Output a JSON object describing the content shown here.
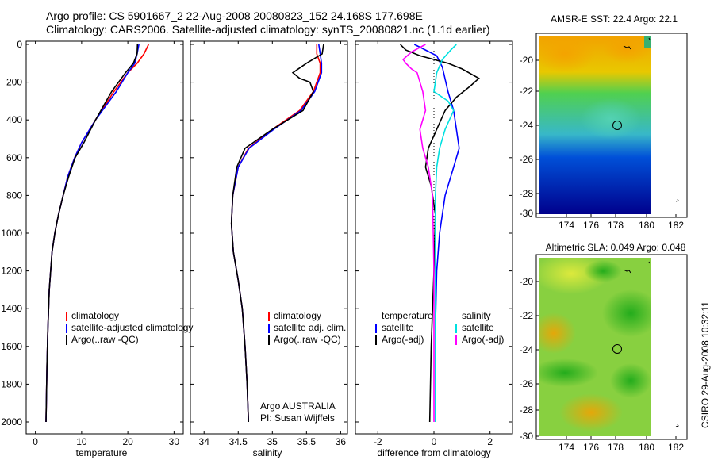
{
  "title_line1": "Argo profile: CS 5901667_2 22-Aug-2008 20080823_152 24.168S 177.698E",
  "title_line2": "Climatology: CARS2006. Satellite-adjusted climatology: synTS_20080821.nc (1.1d earlier)",
  "footer": "CSIRO 29-Aug-2008 10:32:11",
  "depth_ticks": [
    "0",
    "200",
    "400",
    "600",
    "800",
    "1000",
    "1200",
    "1400",
    "1600",
    "1800",
    "2000"
  ],
  "colors": {
    "red": "#ff0000",
    "blue": "#0000ff",
    "black": "#000000",
    "cyan": "#00e0e0",
    "magenta": "#ff00ff"
  },
  "panels": {
    "temperature": {
      "xlabel": "temperature",
      "xticks": [
        "0",
        "10",
        "20",
        "30"
      ],
      "legend": [
        "climatology",
        "satellite-adjusted climatology",
        "Argo(..raw -QC)"
      ]
    },
    "salinity": {
      "xlabel": "salinity",
      "xticks": [
        "34",
        "34.5",
        "35",
        "35.5",
        "36"
      ],
      "legend": [
        "climatology",
        "satellite adj. clim.",
        "Argo(..raw -QC)"
      ],
      "note1": "Argo AUSTRALIA",
      "note2": "PI: Susan Wijffels"
    },
    "difference": {
      "xlabel": "difference from climatology",
      "xticks": [
        "-2",
        "0",
        "2"
      ],
      "legend_temp_head": "temperature",
      "legend_temp": [
        "satellite",
        "Argo(-adj)"
      ],
      "legend_sal_head": "salinity",
      "legend_sal": [
        "satellite",
        "Argo(-adj)"
      ]
    }
  },
  "maps": {
    "sst_title": "AMSR-E SST: 22.4  Argo: 22.1",
    "sla_title": "Altimetric SLA: 0.049  Argo: 0.048",
    "lat_ticks": [
      "-20",
      "-22",
      "-24",
      "-26",
      "-28",
      "-30"
    ],
    "lon_ticks": [
      "174",
      "176",
      "178",
      "180",
      "182"
    ]
  },
  "chart_data": [
    {
      "type": "line",
      "title": "",
      "xlabel": "temperature",
      "ylabel": "",
      "xlim": [
        -2,
        32
      ],
      "ylim": [
        2050,
        0
      ],
      "series": [
        {
          "name": "climatology",
          "x": [
            24.5,
            23.5,
            22,
            20,
            17,
            13,
            10,
            8.5,
            7,
            6,
            5,
            4.2,
            3.6,
            3,
            2.7,
            2.5,
            2.3
          ],
          "y": [
            0,
            50,
            100,
            150,
            250,
            400,
            520,
            600,
            700,
            800,
            900,
            1000,
            1100,
            1300,
            1500,
            1700,
            2000
          ]
        },
        {
          "name": "satellite-adjusted climatology",
          "x": [
            22.4,
            22,
            21.5,
            20,
            17.5,
            13,
            10,
            8.5,
            7,
            6,
            5,
            4.2,
            3.6,
            3,
            2.7,
            2.5,
            2.3
          ],
          "y": [
            0,
            50,
            100,
            150,
            250,
            400,
            520,
            600,
            700,
            800,
            900,
            1000,
            1100,
            1300,
            1500,
            1700,
            2000
          ]
        },
        {
          "name": "Argo(..raw -QC)",
          "x": [
            22.1,
            22,
            21.2,
            19.5,
            16.5,
            13,
            10.5,
            8.6,
            7.2,
            6,
            5,
            4.2,
            3.6,
            3,
            2.7,
            2.5,
            2.3
          ],
          "y": [
            0,
            50,
            100,
            150,
            250,
            400,
            520,
            600,
            700,
            800,
            900,
            1000,
            1100,
            1300,
            1500,
            1700,
            2000
          ]
        }
      ]
    },
    {
      "type": "line",
      "title": "",
      "xlabel": "salinity",
      "ylabel": "",
      "xlim": [
        33.8,
        36.1
      ],
      "ylim": [
        2050,
        0
      ],
      "series": [
        {
          "name": "climatology",
          "x": [
            35.65,
            35.65,
            35.7,
            35.7,
            35.6,
            35.4,
            35.0,
            34.65,
            34.5,
            34.42,
            34.4,
            34.43,
            34.5,
            34.56,
            34.6,
            34.63,
            34.65
          ],
          "y": [
            0,
            50,
            100,
            150,
            250,
            350,
            450,
            550,
            650,
            800,
            950,
            1100,
            1250,
            1400,
            1600,
            1800,
            2000
          ]
        },
        {
          "name": "satellite adj. clim.",
          "x": [
            35.68,
            35.7,
            35.72,
            35.72,
            35.62,
            35.42,
            35.02,
            34.66,
            34.5,
            34.42,
            34.4,
            34.43,
            34.5,
            34.56,
            34.6,
            34.63,
            34.65
          ],
          "y": [
            0,
            50,
            100,
            150,
            250,
            350,
            450,
            550,
            650,
            800,
            950,
            1100,
            1250,
            1400,
            1600,
            1800,
            2000
          ]
        },
        {
          "name": "Argo(..raw -QC)",
          "x": [
            35.75,
            35.73,
            35.5,
            35.3,
            35.4,
            35.55,
            35.6,
            35.45,
            35.0,
            34.6,
            34.48,
            34.42,
            34.4,
            34.43,
            34.5,
            34.56,
            34.6,
            34.63,
            34.65
          ],
          "y": [
            0,
            50,
            100,
            150,
            180,
            200,
            250,
            350,
            450,
            550,
            650,
            800,
            950,
            1100,
            1250,
            1400,
            1600,
            1800,
            2000
          ]
        }
      ]
    },
    {
      "type": "line",
      "title": "",
      "xlabel": "difference from climatology",
      "ylabel": "",
      "xlim": [
        -2.8,
        2.8
      ],
      "ylim": [
        2050,
        0
      ],
      "series": [
        {
          "name": "temperature satellite",
          "x": [
            -0.7,
            -0.3,
            0.1,
            0.3,
            0.5,
            0.7,
            0.8,
            0.9,
            0.7,
            0.4,
            0.2,
            0.1,
            0.05,
            0.05,
            0.05
          ],
          "y": [
            0,
            30,
            60,
            120,
            250,
            350,
            450,
            550,
            650,
            800,
            1000,
            1200,
            1500,
            1800,
            2000
          ]
        },
        {
          "name": "temperature Argo(-adj)",
          "x": [
            -1.2,
            -1.0,
            -0.5,
            0.5,
            1.0,
            1.6,
            1.3,
            0.8,
            0.4,
            0.1,
            -0.2,
            -0.3,
            -0.1,
            0.05,
            0.0,
            -0.1,
            -0.15
          ],
          "y": [
            0,
            30,
            60,
            100,
            130,
            180,
            220,
            280,
            350,
            450,
            550,
            650,
            750,
            900,
            1200,
            1600,
            2000
          ]
        },
        {
          "name": "salinity satellite",
          "x": [
            0.8,
            0.6,
            0.3,
            0.1,
            0.0,
            0.5,
            0.7,
            0.4,
            0.2,
            0.1,
            0.05,
            0.05,
            0.05
          ],
          "y": [
            0,
            30,
            80,
            150,
            250,
            300,
            350,
            450,
            550,
            650,
            800,
            1200,
            2000
          ]
        },
        {
          "name": "salinity Argo(-adj)",
          "x": [
            -0.3,
            -0.8,
            -1.1,
            -1.0,
            -0.8,
            -0.6,
            -0.4,
            -0.3,
            -0.5,
            -0.4,
            -0.2,
            -0.05,
            0.0,
            0.0
          ],
          "y": [
            0,
            40,
            80,
            100,
            130,
            150,
            250,
            350,
            450,
            550,
            650,
            800,
            1200,
            2000
          ]
        }
      ]
    }
  ]
}
